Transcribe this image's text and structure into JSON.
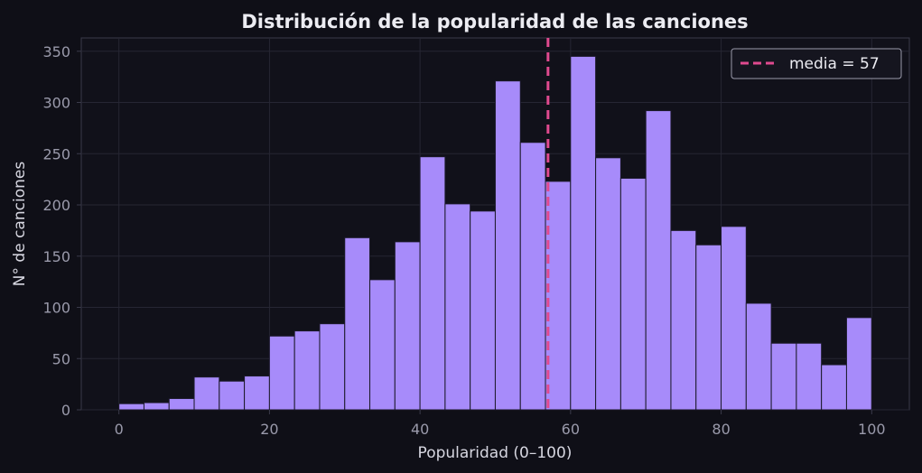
{
  "chart_data": {
    "type": "bar",
    "title": "Distribución de la popularidad de las canciones",
    "xlabel": "Popularidad (0–100)",
    "ylabel": "N° de canciones",
    "xlim": [
      -5,
      105
    ],
    "ylim": [
      0,
      363
    ],
    "xticks": [
      0,
      20,
      40,
      60,
      80,
      100
    ],
    "yticks": [
      0,
      50,
      100,
      150,
      200,
      250,
      300,
      350
    ],
    "grid": true,
    "legend_position": "top-right",
    "bin_width": 3.333,
    "bin_start": 0,
    "values": [
      6,
      7,
      11,
      32,
      28,
      33,
      72,
      77,
      84,
      168,
      127,
      164,
      247,
      201,
      194,
      321,
      261,
      223,
      345,
      246,
      226,
      292,
      175,
      161,
      179,
      104,
      65,
      65,
      44,
      90
    ],
    "mean_line": {
      "value": 57,
      "label": "media = 57"
    },
    "colors": {
      "background": "#0f0f17",
      "plot_background": "#11111a",
      "bar": "#a78bfa",
      "bar_edge": "#1c1a2a",
      "mean_line": "#e04a8f",
      "grid": "#262633",
      "axes": "#3a3a4a"
    }
  }
}
